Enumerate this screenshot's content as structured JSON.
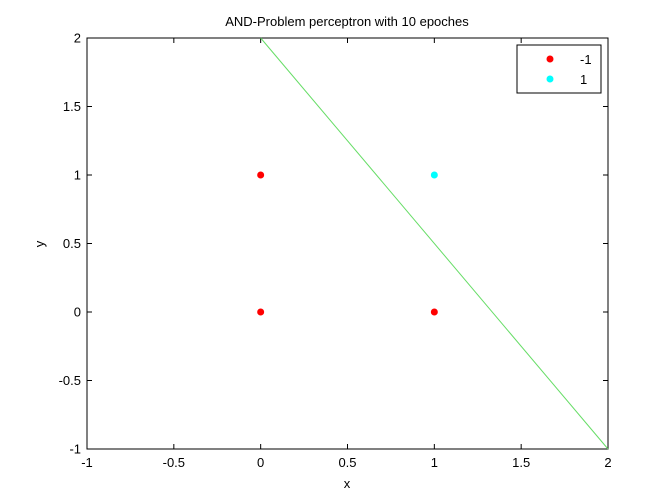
{
  "chart_data": {
    "type": "scatter",
    "title": "AND-Problem perceptron with 10 epoches",
    "xlabel": "x",
    "ylabel": "y",
    "xlim": [
      -1,
      2
    ],
    "ylim": [
      -1,
      2
    ],
    "xticks": [
      "-1",
      "-0.5",
      "0",
      "0.5",
      "1",
      "1.5",
      "2"
    ],
    "xtick_values": [
      -1,
      -0.5,
      0,
      0.5,
      1,
      1.5,
      2
    ],
    "yticks": [
      "-1",
      "-0.5",
      "0",
      "0.5",
      "1",
      "1.5",
      "2"
    ],
    "ytick_values": [
      -1,
      -0.5,
      0,
      0.5,
      1,
      1.5,
      2
    ],
    "grid": false,
    "legend_position": "top-right",
    "series": [
      {
        "name": "-1",
        "color": "#ff0000",
        "points": [
          [
            0,
            1
          ],
          [
            0,
            0
          ],
          [
            1,
            0
          ]
        ]
      },
      {
        "name": "1",
        "color": "#00ffff",
        "points": [
          [
            1,
            1
          ]
        ]
      }
    ],
    "decision_boundary": {
      "color": "#66dd66",
      "points": [
        [
          0,
          2
        ],
        [
          2,
          -1
        ]
      ]
    }
  }
}
